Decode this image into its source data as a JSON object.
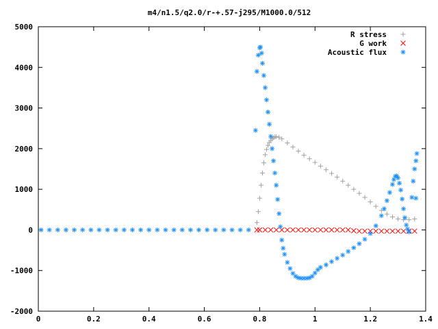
{
  "chart_data": {
    "type": "scatter",
    "title": "m4/n1.5/q2.0/r-+.57-j295/M1000.0/512",
    "xlabel": "",
    "ylabel": "",
    "xlim": [
      0,
      1.4
    ],
    "ylim": [
      -2000,
      5000
    ],
    "x_ticks": [
      "0",
      "0.2",
      "0.4",
      "0.6",
      "0.8",
      "1",
      "1.2",
      "1.4"
    ],
    "y_ticks": [
      "-2000",
      "-1000",
      "0",
      "1000",
      "2000",
      "3000",
      "4000",
      "5000"
    ],
    "grid": false,
    "legend_position": "top-right",
    "series": [
      {
        "name": "R stress",
        "marker": "+",
        "color": "#a0a0a0",
        "points": [
          [
            0.79,
            180
          ],
          [
            0.795,
            450
          ],
          [
            0.8,
            780
          ],
          [
            0.805,
            1100
          ],
          [
            0.81,
            1400
          ],
          [
            0.815,
            1650
          ],
          [
            0.82,
            1850
          ],
          [
            0.825,
            1980
          ],
          [
            0.83,
            2080
          ],
          [
            0.835,
            2150
          ],
          [
            0.84,
            2200
          ],
          [
            0.845,
            2240
          ],
          [
            0.85,
            2270
          ],
          [
            0.855,
            2290
          ],
          [
            0.86,
            2295
          ],
          [
            0.87,
            2280
          ],
          [
            0.88,
            2240
          ],
          [
            0.9,
            2140
          ],
          [
            0.92,
            2040
          ],
          [
            0.94,
            1940
          ],
          [
            0.96,
            1840
          ],
          [
            0.98,
            1750
          ],
          [
            1.0,
            1660
          ],
          [
            1.02,
            1570
          ],
          [
            1.04,
            1480
          ],
          [
            1.06,
            1390
          ],
          [
            1.08,
            1300
          ],
          [
            1.1,
            1200
          ],
          [
            1.12,
            1100
          ],
          [
            1.14,
            1000
          ],
          [
            1.16,
            900
          ],
          [
            1.18,
            800
          ],
          [
            1.2,
            690
          ],
          [
            1.22,
            580
          ],
          [
            1.24,
            480
          ],
          [
            1.26,
            390
          ],
          [
            1.28,
            320
          ],
          [
            1.3,
            270
          ],
          [
            1.32,
            250
          ],
          [
            1.34,
            250
          ],
          [
            1.36,
            270
          ]
        ]
      },
      {
        "name": "G work",
        "marker": "x",
        "color": "#ff0000",
        "points": [
          [
            0.79,
            0
          ],
          [
            0.8,
            0
          ],
          [
            0.82,
            0
          ],
          [
            0.84,
            0
          ],
          [
            0.86,
            0
          ],
          [
            0.88,
            0
          ],
          [
            0.9,
            0
          ],
          [
            0.92,
            0
          ],
          [
            0.94,
            0
          ],
          [
            0.96,
            0
          ],
          [
            0.98,
            0
          ],
          [
            1.0,
            0
          ],
          [
            1.02,
            0
          ],
          [
            1.04,
            0
          ],
          [
            1.06,
            0
          ],
          [
            1.08,
            0
          ],
          [
            1.1,
            0
          ],
          [
            1.12,
            0
          ],
          [
            1.14,
            -20
          ],
          [
            1.16,
            -30
          ],
          [
            1.18,
            -30
          ],
          [
            1.2,
            -30
          ],
          [
            1.22,
            -30
          ],
          [
            1.24,
            -30
          ],
          [
            1.26,
            -30
          ],
          [
            1.28,
            -30
          ],
          [
            1.3,
            -30
          ],
          [
            1.32,
            -30
          ],
          [
            1.34,
            -30
          ],
          [
            1.36,
            -30
          ]
        ]
      },
      {
        "name": "Acoustic flux",
        "marker": "*",
        "color": "#1e90ff",
        "points": [
          [
            0.01,
            0
          ],
          [
            0.04,
            0
          ],
          [
            0.07,
            0
          ],
          [
            0.1,
            0
          ],
          [
            0.13,
            0
          ],
          [
            0.16,
            0
          ],
          [
            0.19,
            0
          ],
          [
            0.22,
            0
          ],
          [
            0.25,
            0
          ],
          [
            0.28,
            0
          ],
          [
            0.31,
            0
          ],
          [
            0.34,
            0
          ],
          [
            0.37,
            0
          ],
          [
            0.4,
            0
          ],
          [
            0.43,
            0
          ],
          [
            0.46,
            0
          ],
          [
            0.49,
            0
          ],
          [
            0.52,
            0
          ],
          [
            0.55,
            0
          ],
          [
            0.58,
            0
          ],
          [
            0.61,
            0
          ],
          [
            0.64,
            0
          ],
          [
            0.67,
            0
          ],
          [
            0.7,
            0
          ],
          [
            0.73,
            0
          ],
          [
            0.76,
            0
          ],
          [
            0.785,
            2450
          ],
          [
            0.79,
            3900
          ],
          [
            0.795,
            4300
          ],
          [
            0.8,
            4480
          ],
          [
            0.803,
            4500
          ],
          [
            0.807,
            4350
          ],
          [
            0.81,
            4100
          ],
          [
            0.815,
            3800
          ],
          [
            0.82,
            3500
          ],
          [
            0.825,
            3200
          ],
          [
            0.83,
            2900
          ],
          [
            0.835,
            2600
          ],
          [
            0.84,
            2300
          ],
          [
            0.845,
            2000
          ],
          [
            0.85,
            1700
          ],
          [
            0.855,
            1400
          ],
          [
            0.86,
            1100
          ],
          [
            0.865,
            750
          ],
          [
            0.87,
            400
          ],
          [
            0.875,
            80
          ],
          [
            0.88,
            -250
          ],
          [
            0.885,
            -450
          ],
          [
            0.89,
            -600
          ],
          [
            0.9,
            -800
          ],
          [
            0.91,
            -950
          ],
          [
            0.92,
            -1070
          ],
          [
            0.93,
            -1140
          ],
          [
            0.94,
            -1180
          ],
          [
            0.95,
            -1190
          ],
          [
            0.96,
            -1190
          ],
          [
            0.97,
            -1190
          ],
          [
            0.98,
            -1180
          ],
          [
            0.99,
            -1140
          ],
          [
            1.0,
            -1060
          ],
          [
            1.01,
            -980
          ],
          [
            1.02,
            -920
          ],
          [
            1.04,
            -860
          ],
          [
            1.06,
            -780
          ],
          [
            1.08,
            -700
          ],
          [
            1.1,
            -620
          ],
          [
            1.12,
            -530
          ],
          [
            1.14,
            -440
          ],
          [
            1.16,
            -340
          ],
          [
            1.18,
            -230
          ],
          [
            1.2,
            -90
          ],
          [
            1.22,
            100
          ],
          [
            1.24,
            350
          ],
          [
            1.25,
            520
          ],
          [
            1.26,
            720
          ],
          [
            1.27,
            920
          ],
          [
            1.28,
            1120
          ],
          [
            1.285,
            1240
          ],
          [
            1.29,
            1320
          ],
          [
            1.295,
            1330
          ],
          [
            1.3,
            1280
          ],
          [
            1.305,
            1150
          ],
          [
            1.31,
            980
          ],
          [
            1.315,
            760
          ],
          [
            1.32,
            520
          ],
          [
            1.325,
            300
          ],
          [
            1.33,
            120
          ],
          [
            1.335,
            20
          ],
          [
            1.34,
            -50
          ],
          [
            1.35,
            800
          ],
          [
            1.355,
            1200
          ],
          [
            1.36,
            1500
          ],
          [
            1.365,
            1700
          ],
          [
            1.368,
            1880
          ],
          [
            1.365,
            780
          ]
        ]
      }
    ]
  }
}
